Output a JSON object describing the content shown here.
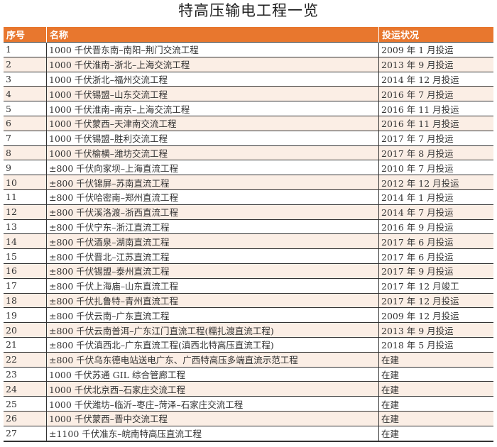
{
  "title": "特高压输电工程一览",
  "colors": {
    "header_bg": "#e8772e",
    "alt_row_bg": "#fbeee5"
  },
  "columns": [
    "序号",
    "名称",
    "投运状况"
  ],
  "rows": [
    [
      "1",
      "1000 千伏晋东南–南阳–荆门交流工程",
      "2009 年 1 月投运"
    ],
    [
      "2",
      "1000 千伏淮南–浙北–上海交流工程",
      "2013 年 9 月投运"
    ],
    [
      "3",
      "1000 千伏浙北–福州交流工程",
      "2014 年 12 月投运"
    ],
    [
      "4",
      "1000 千伏锡盟–山东交流工程",
      "2016 年 7 月投运"
    ],
    [
      "5",
      "1000 千伏淮南–南京–上海交流工程",
      "2016 年 11 月投运"
    ],
    [
      "6",
      "1000 千伏蒙西–天津南交流工程",
      "2016 年 11 月投运"
    ],
    [
      "7",
      "1000 千伏锡盟–胜利交流工程",
      "2017 年 7 月投运"
    ],
    [
      "8",
      "1000 千伏榆横–潍坊交流工程",
      "2017 年 8 月投运"
    ],
    [
      "9",
      "±800 千伏向家坝–上海直流工程",
      "2010 年 7 月投运"
    ],
    [
      "10",
      "±800 千伏锦屏–苏南直流工程",
      "2012 年 12 月投运"
    ],
    [
      "11",
      "±800 千伏哈密南–郑州直流工程",
      "2014 年 1 月投运"
    ],
    [
      "12",
      "±800 千伏溪洛渡–浙西直流工程",
      "2014 年 7 月投运"
    ],
    [
      "13",
      "±800 千伏宁东–浙江直流工程",
      "2016 年 9 月投运"
    ],
    [
      "14",
      "±800 千伏酒泉–湖南直流工程",
      "2017 年 6 月投运"
    ],
    [
      "15",
      "±800 千伏晋北–江苏直流工程",
      "2017 年 6 月投运"
    ],
    [
      "16",
      "±800 千伏锡盟–泰州直流工程",
      "2017 年 9 月投运"
    ],
    [
      "17",
      "±800 千伏上海庙–山东直流工程",
      "2017 年 12 月竣工"
    ],
    [
      "18",
      "±800 千伏扎鲁特–青州直流工程",
      "2017 年 12 月投运"
    ],
    [
      "19",
      "±800 千伏云南–广东直流工程",
      "2009 年 12 月投运"
    ],
    [
      "20",
      "±800 千伏云南普洱–广东江门直流工程(糯扎渡直流工程)",
      "2013 年 9 月投运"
    ],
    [
      "21",
      "±800 千伏滇西北–广东直流工程(滇西北特高压直流工程)",
      "2018 年 5 月投运"
    ],
    [
      "22",
      "±800 千伏乌东德电站送电广东、广西特高压多端直流示范工程",
      "在建"
    ],
    [
      "23",
      "1000 千伏苏通 GIL 综合管廊工程",
      "在建"
    ],
    [
      "24",
      "1000 千伏北京西–石家庄交流工程",
      "在建"
    ],
    [
      "25",
      "1000 千伏潍坊–临沂–枣庄–菏泽–石家庄交流工程",
      "在建"
    ],
    [
      "26",
      "1000 千伏蒙西–晋中交流工程",
      "在建"
    ],
    [
      "27",
      "±1100 千伏准东–皖南特高压直流工程",
      "在建"
    ]
  ]
}
